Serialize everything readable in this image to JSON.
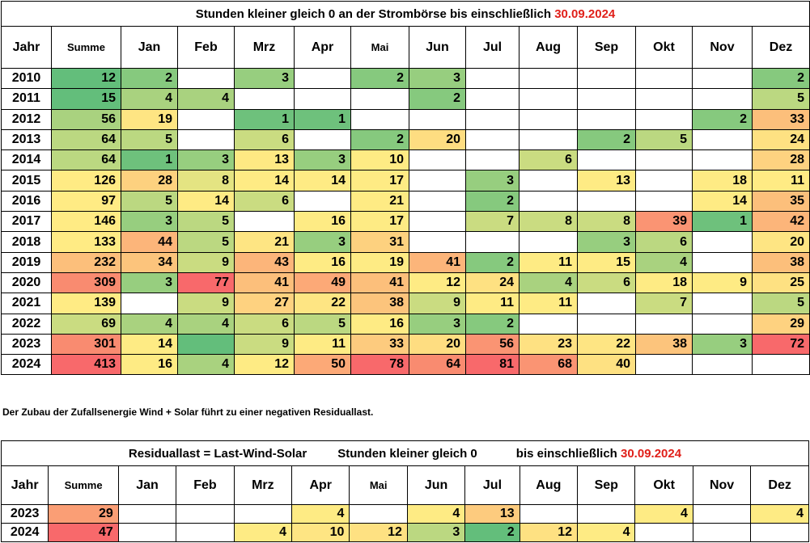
{
  "table1": {
    "title_text": "Stunden kleiner gleich  0  an der Strombörse bis einschließlich ",
    "title_date": "30.09.2024",
    "headers": [
      "Jahr",
      "Summe",
      "Jan",
      "Feb",
      "Mrz",
      "Apr",
      "Mai",
      "Jun",
      "Jul",
      "Aug",
      "Sep",
      "Okt",
      "Nov",
      "Dez"
    ],
    "rows": [
      [
        "2010",
        "12",
        "2",
        "",
        "3",
        "",
        "2",
        "3",
        "",
        "",
        "",
        "",
        "",
        "2"
      ],
      [
        "2011",
        "15",
        "4",
        "4",
        "",
        "",
        "",
        "2",
        "",
        "",
        "",
        "",
        "",
        "5"
      ],
      [
        "2012",
        "56",
        "19",
        "",
        "1",
        "1",
        "",
        "",
        "",
        "",
        "",
        "",
        "2",
        "33"
      ],
      [
        "2013",
        "64",
        "5",
        "",
        "6",
        "",
        "2",
        "20",
        "",
        "",
        "2",
        "5",
        "",
        "24"
      ],
      [
        "2014",
        "64",
        "1",
        "3",
        "13",
        "3",
        "10",
        "",
        "",
        "6",
        "",
        "",
        "",
        "28"
      ],
      [
        "2015",
        "126",
        "28",
        "8",
        "14",
        "14",
        "17",
        "",
        "3",
        "",
        "13",
        "",
        "18",
        "11"
      ],
      [
        "2016",
        "97",
        "5",
        "14",
        "6",
        "",
        "21",
        "",
        "2",
        "",
        "",
        "",
        "14",
        "35"
      ],
      [
        "2017",
        "146",
        "3",
        "5",
        "",
        "16",
        "17",
        "",
        "7",
        "8",
        "8",
        "39",
        "1",
        "42"
      ],
      [
        "2018",
        "133",
        "44",
        "5",
        "21",
        "3",
        "31",
        "",
        "",
        "",
        "3",
        "6",
        "",
        "20"
      ],
      [
        "2019",
        "232",
        "34",
        "9",
        "43",
        "16",
        "19",
        "41",
        "2",
        "11",
        "15",
        "4",
        "",
        "38"
      ],
      [
        "2020",
        "309",
        "3",
        "77",
        "41",
        "49",
        "41",
        "12",
        "24",
        "4",
        "6",
        "18",
        "9",
        "25"
      ],
      [
        "2021",
        "139",
        "",
        "9",
        "27",
        "22",
        "38",
        "9",
        "11",
        "11",
        "",
        "7",
        "",
        "5"
      ],
      [
        "2022",
        "69",
        "4",
        "4",
        "6",
        "5",
        "16",
        "3",
        "2",
        "",
        "",
        "",
        "",
        "29"
      ],
      [
        "2023",
        "301",
        "14",
        "",
        "9",
        "11",
        "33",
        "20",
        "56",
        "23",
        "22",
        "38",
        "3",
        "72"
      ],
      [
        "2024",
        "413",
        "16",
        "4",
        "12",
        "50",
        "78",
        "64",
        "81",
        "68",
        "40",
        "",
        "",
        ""
      ]
    ],
    "colors": [
      [
        "",
        "#63be7b",
        "#86c97e",
        "",
        "#97ce7f",
        "",
        "#86c97e",
        "#97ce7f",
        "",
        "",
        "",
        "",
        "",
        "#86c97e"
      ],
      [
        "",
        "#63be7b",
        "#a9d27f",
        "#a9d27f",
        "",
        "",
        "",
        "#86c97e",
        "",
        "",
        "",
        "",
        "",
        "#bbd881"
      ],
      [
        "",
        "#a9d27f",
        "#fee583",
        "",
        "#6ec17c",
        "#6ec17c",
        "",
        "",
        "",
        "",
        "",
        "",
        "#86c97e",
        "#fcbf7b"
      ],
      [
        "",
        "#bbd881",
        "#bbd881",
        "",
        "#cadc81",
        "",
        "#86c97e",
        "#fedd81",
        "",
        "",
        "#86c97e",
        "#bbd881",
        "",
        "#fee182"
      ],
      [
        "",
        "#bbd881",
        "#6ec17c",
        "#97ce7f",
        "#fee983",
        "#97ce7f",
        "#feeb84",
        "",
        "",
        "#cadc81",
        "",
        "",
        "",
        "#fed280"
      ],
      [
        "",
        "#ffeb84",
        "#fdd17f",
        "#e4e482",
        "#feeb84",
        "#feeb84",
        "#feeb84",
        "",
        "#97ce7f",
        "",
        "#feeb84",
        "",
        "#feeb84",
        "#ffeb84"
      ],
      [
        "",
        "#ffeb84",
        "#bbd881",
        "#feeb84",
        "#cadc81",
        "",
        "#feeb84",
        "",
        "#86c97e",
        "",
        "",
        "",
        "#feeb84",
        "#fcbf7b"
      ],
      [
        "",
        "#ffeb84",
        "#97ce7f",
        "#bbd881",
        "",
        "#feeb84",
        "#feeb84",
        "",
        "#cadc81",
        "#cadc81",
        "#cadc81",
        "#fa9473",
        "#6ec17c",
        "#fcb57a"
      ],
      [
        "",
        "#ffeb84",
        "#fcb57a",
        "#bbd881",
        "#fee583",
        "#97ce7f",
        "#fdd17f",
        "",
        "",
        "",
        "#97ce7f",
        "#bbd881",
        "",
        "#fee583"
      ],
      [
        "",
        "#fcbf7b",
        "#fcc47c",
        "#cadc81",
        "#fcb57a",
        "#feeb84",
        "#feeb84",
        "#fcb57a",
        "#86c97e",
        "#feeb84",
        "#feeb84",
        "#a9d27f",
        "",
        "#fcbf7b"
      ],
      [
        "",
        "#f98b70",
        "#97ce7f",
        "#f8696b",
        "#fcbf7b",
        "#fca977",
        "#fcbf7b",
        "#feeb84",
        "#fee182",
        "#a9d27f",
        "#cadc81",
        "#feeb84",
        "#feeb84",
        "#fee182"
      ],
      [
        "",
        "#ffeb84",
        "",
        "#cadc81",
        "#fed280",
        "#fee583",
        "#fcc47c",
        "#cadc81",
        "#feeb84",
        "#feeb84",
        "",
        "#cadc81",
        "",
        "#bbd881"
      ],
      [
        "",
        "#cadc81",
        "#a9d27f",
        "#a9d27f",
        "#cadc81",
        "#bbd881",
        "#feeb84",
        "#97ce7f",
        "#86c97e",
        "",
        "",
        "",
        "",
        "#fed280"
      ],
      [
        "",
        "#f98b70",
        "#feeb84",
        "#63be7b",
        "#cadc81",
        "#feeb84",
        "#fdcb7e",
        "#fedd81",
        "#fa9473",
        "#fee182",
        "#fee583",
        "#fcc47c",
        "#97ce7f",
        "#f8696b"
      ],
      [
        "",
        "#f8696b",
        "#feeb84",
        "#a9d27f",
        "#feeb84",
        "#fca977",
        "#f8696b",
        "#f98b70",
        "#f8696b",
        "#fa9473",
        "#fee182",
        "",
        "",
        ""
      ]
    ]
  },
  "note_text": "Der Zubau der Zufallsenergie Wind + Solar führt zu einer negativen Residuallast.",
  "table2": {
    "title_a": "Residuallast = Last-Wind-Solar",
    "title_b": "Stunden kleiner gleich  0",
    "title_c": "bis einschließlich ",
    "title_date": "30.09.2024",
    "headers": [
      "Jahr",
      "Summe",
      "Jan",
      "Feb",
      "Mrz",
      "Apr",
      "Mai",
      "Jun",
      "Jul",
      "Aug",
      "Sep",
      "Okt",
      "Nov",
      "Dez"
    ],
    "rows": [
      [
        "2023",
        "29",
        "",
        "",
        "",
        "4",
        "",
        "4",
        "13",
        "",
        "",
        "4",
        "",
        "4"
      ],
      [
        "2024",
        "47",
        "",
        "",
        "4",
        "10",
        "12",
        "3",
        "2",
        "12",
        "4",
        "",
        "",
        ""
      ]
    ],
    "colors": [
      [
        "",
        "#fa9e75",
        "",
        "",
        "",
        "#feeb84",
        "",
        "#feeb84",
        "#fdcb7e",
        "",
        "",
        "#feeb84",
        "",
        "#feeb84"
      ],
      [
        "",
        "#f8696b",
        "",
        "",
        "#feeb84",
        "#fee583",
        "#fee182",
        "#bbd881",
        "#63be7b",
        "#fee182",
        "#feeb84",
        "",
        "",
        ""
      ]
    ]
  }
}
